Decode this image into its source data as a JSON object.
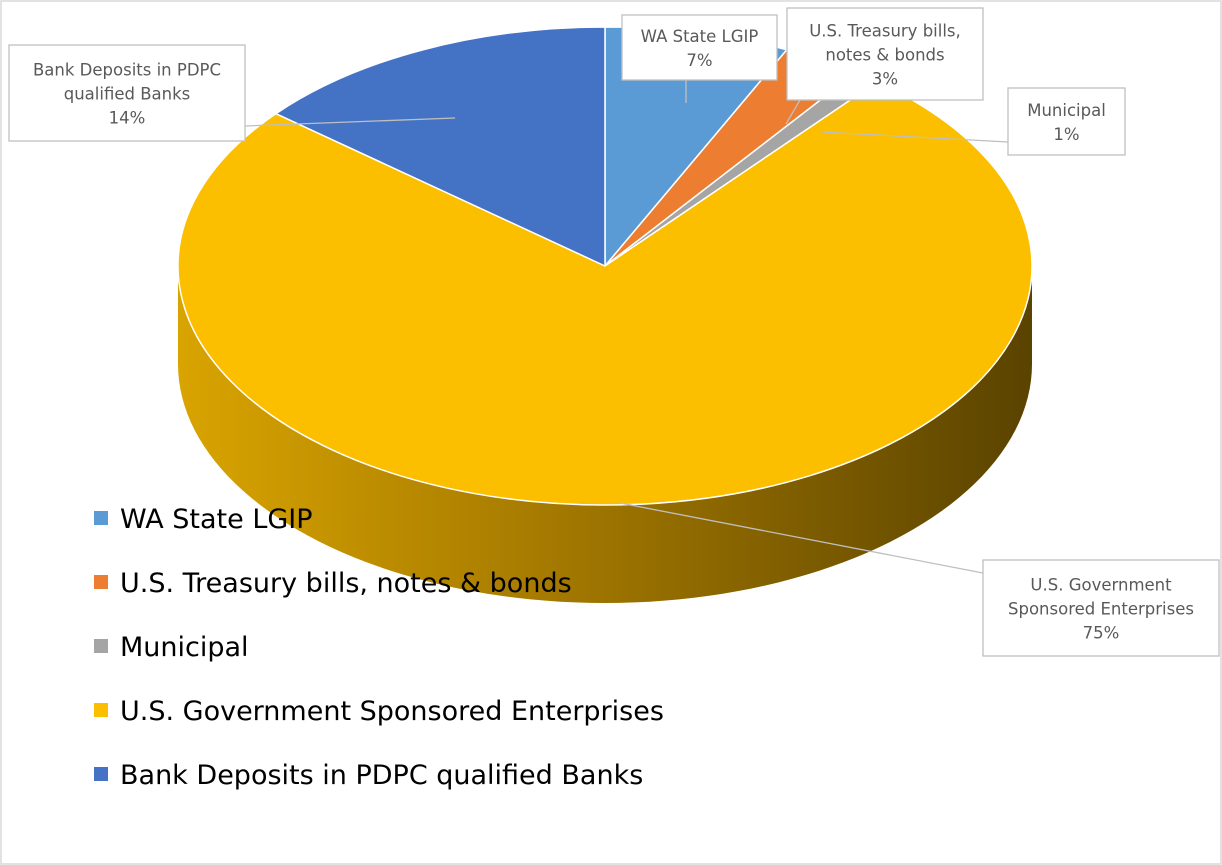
{
  "chart_data": {
    "type": "pie",
    "style": "3d",
    "categories": [
      "WA State LGIP",
      "U.S. Treasury bills, notes & bonds",
      "Municipal",
      "U.S. Government Sponsored Enterprises",
      "Bank Deposits in PDPC qualified Banks"
    ],
    "values": [
      7,
      3,
      1,
      75,
      14
    ],
    "unit": "%",
    "colors": [
      "#5b9bd5",
      "#ed7d31",
      "#a5a5a5",
      "#fbbf00",
      "#4472c4"
    ],
    "data_labels": [
      {
        "lines": [
          "WA State LGIP"
        ],
        "value": "7%"
      },
      {
        "lines": [
          "U.S. Treasury bills,",
          "notes & bonds"
        ],
        "value": "3%"
      },
      {
        "lines": [
          "Municipal"
        ],
        "value": "1%"
      },
      {
        "lines": [
          "U.S. Government",
          "Sponsored Enterprises"
        ],
        "value": "75%"
      },
      {
        "lines": [
          "Bank Deposits in PDPC",
          "qualified Banks"
        ],
        "value": "14%"
      }
    ],
    "legend": {
      "position": "bottom-left",
      "entries": [
        "WA State LGIP",
        "U.S. Treasury bills, notes & bonds",
        "Municipal",
        "U.S. Government Sponsored Enterprises",
        "Bank Deposits in PDPC qualified Banks"
      ]
    }
  }
}
